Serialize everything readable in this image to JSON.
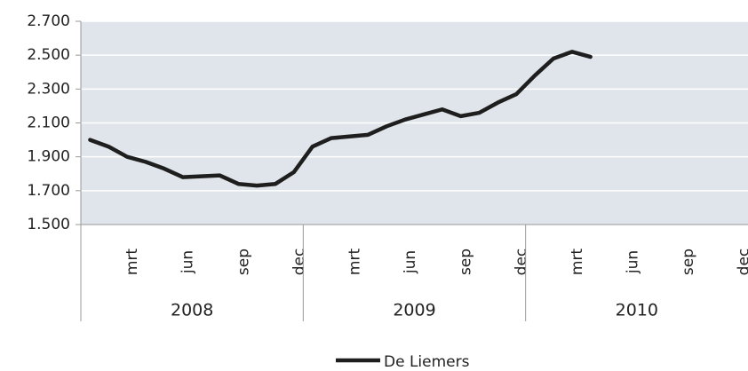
{
  "chart_data": {
    "type": "line",
    "categories": [
      null,
      null,
      "mrt",
      null,
      null,
      "jun",
      null,
      null,
      "sep",
      null,
      null,
      "dec",
      null,
      null,
      "mrt",
      null,
      null,
      "jun",
      null,
      null,
      "sep",
      null,
      null,
      "dec",
      null,
      null,
      "mrt",
      null,
      null,
      "jun",
      null,
      null,
      "sep",
      null,
      null,
      "dec"
    ],
    "x_groups": [
      "2008",
      "2009",
      "2010"
    ],
    "series": [
      {
        "name": "De Liemers",
        "color": "#1e1e1e",
        "values": [
          2000,
          1960,
          1900,
          1870,
          1830,
          1780,
          1785,
          1790,
          1740,
          1730,
          1740,
          1810,
          1960,
          2010,
          2020,
          2030,
          2080,
          2120,
          2150,
          2180,
          2140,
          2160,
          2220,
          2270,
          2380,
          2480,
          2520,
          2490,
          null,
          null,
          null,
          null,
          null,
          null,
          null,
          null
        ]
      }
    ],
    "ylim": [
      1500,
      2700
    ],
    "yticks": [
      {
        "value": 1500,
        "label": "1.500"
      },
      {
        "value": 1700,
        "label": "1.700"
      },
      {
        "value": 1900,
        "label": "1.900"
      },
      {
        "value": 2100,
        "label": "2.100"
      },
      {
        "value": 2300,
        "label": "2.300"
      },
      {
        "value": 2500,
        "label": "2.500"
      },
      {
        "value": 2700,
        "label": "2.700"
      }
    ],
    "grid": true,
    "legend": "bottom"
  }
}
